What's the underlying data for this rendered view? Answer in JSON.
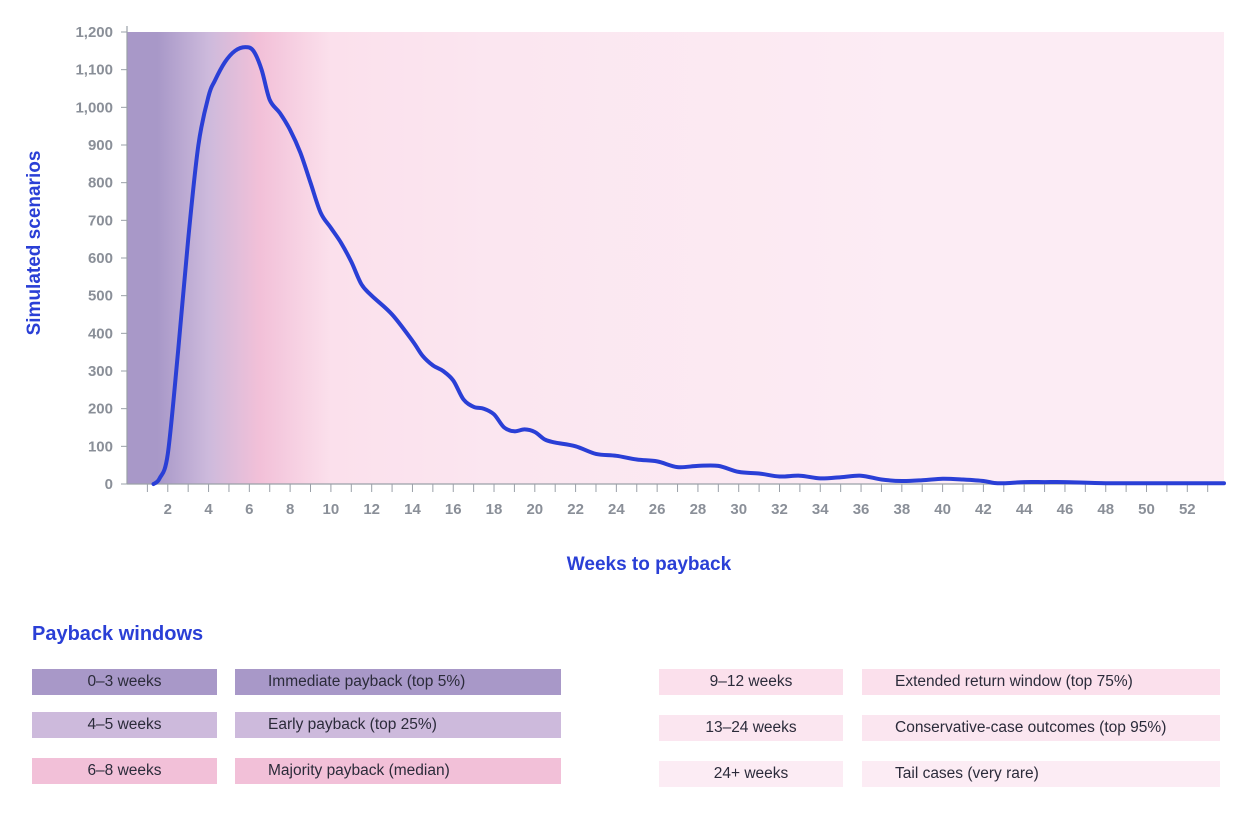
{
  "chart_data": {
    "type": "area",
    "xlabel": "Weeks to payback",
    "ylabel": "Simulated scenarios",
    "xlim": [
      0,
      53.8
    ],
    "ylim": [
      0,
      1200
    ],
    "x_ticks": [
      2,
      4,
      6,
      8,
      10,
      12,
      14,
      16,
      18,
      20,
      22,
      24,
      26,
      28,
      30,
      32,
      34,
      36,
      38,
      40,
      42,
      44,
      46,
      48,
      50,
      52
    ],
    "y_ticks": [
      0,
      100,
      200,
      300,
      400,
      500,
      600,
      700,
      800,
      900,
      1000,
      1100,
      1200
    ],
    "y_tick_labels": [
      "0",
      "100",
      "200",
      "300",
      "400",
      "500",
      "600",
      "700",
      "800",
      "900",
      "1,000",
      "1,100",
      "1,200"
    ],
    "grid": false,
    "line_color": "#2a3fd6",
    "background_bands": [
      {
        "from": 0,
        "to": 3,
        "color": "#a898c8"
      },
      {
        "from": 3,
        "to": 5,
        "color": "#cdbadc"
      },
      {
        "from": 5,
        "to": 8,
        "color": "#f2c0d8"
      },
      {
        "from": 8,
        "to": 12,
        "color": "#fbe0ec"
      },
      {
        "from": 12,
        "to": 24,
        "color": "#fbe6f0"
      },
      {
        "from": 24,
        "to": 53.8,
        "color": "#fcecf4"
      }
    ],
    "series": [
      {
        "x": [
          1.3,
          1.6,
          2.0,
          2.5,
          3.0,
          3.5,
          4.0,
          4.3,
          4.8,
          5.3,
          5.8,
          6.2,
          6.6,
          7.0,
          7.5,
          8.0,
          8.5,
          9.0,
          9.5,
          10.0,
          10.5,
          11.0,
          11.5,
          12.0,
          13.0,
          14.0,
          14.5,
          15.0,
          15.5,
          16.0,
          16.5,
          17.0,
          17.5,
          18.0,
          18.5,
          19.0,
          19.5,
          20.0,
          20.5,
          21.0,
          22.0,
          23.0,
          24.0,
          25.0,
          26.0,
          27.0,
          28.0,
          29.0,
          30.0,
          31.0,
          32.0,
          33.0,
          34.0,
          35.0,
          36.0,
          37.0,
          38.0,
          39.0,
          40.0,
          41.0,
          42.0,
          42.5,
          43.0,
          44.0,
          45.0,
          46.0,
          48.0,
          50.0,
          52.0,
          53.8
        ],
        "values": [
          0,
          15,
          80,
          350,
          650,
          900,
          1030,
          1070,
          1120,
          1150,
          1160,
          1150,
          1100,
          1020,
          985,
          940,
          880,
          800,
          720,
          680,
          640,
          590,
          530,
          500,
          450,
          380,
          340,
          315,
          300,
          275,
          225,
          205,
          200,
          185,
          150,
          140,
          145,
          138,
          118,
          110,
          100,
          80,
          75,
          65,
          60,
          45,
          48,
          48,
          32,
          28,
          20,
          22,
          15,
          18,
          22,
          12,
          8,
          10,
          14,
          12,
          8,
          3,
          2,
          5,
          5,
          5,
          2,
          2,
          2,
          2
        ]
      }
    ]
  },
  "legend": {
    "title": "Payback windows",
    "items": [
      {
        "range": "0–3 weeks",
        "label": "Immediate payback (top 5%)",
        "color": "#a898c8"
      },
      {
        "range": "4–5 weeks",
        "label": "Early payback (top 25%)",
        "color": "#cdbadc"
      },
      {
        "range": "6–8 weeks",
        "label": "Majority payback (median)",
        "color": "#f2c0d8"
      },
      {
        "range": "9–12 weeks",
        "label": "Extended return window (top 75%)",
        "color": "#fbe0ec"
      },
      {
        "range": "13–24 weeks",
        "label": "Conservative-case outcomes (top 95%)",
        "color": "#fbe6f0"
      },
      {
        "range": "24+ weeks",
        "label": "Tail cases (very rare)",
        "color": "#fcecf4"
      }
    ]
  }
}
